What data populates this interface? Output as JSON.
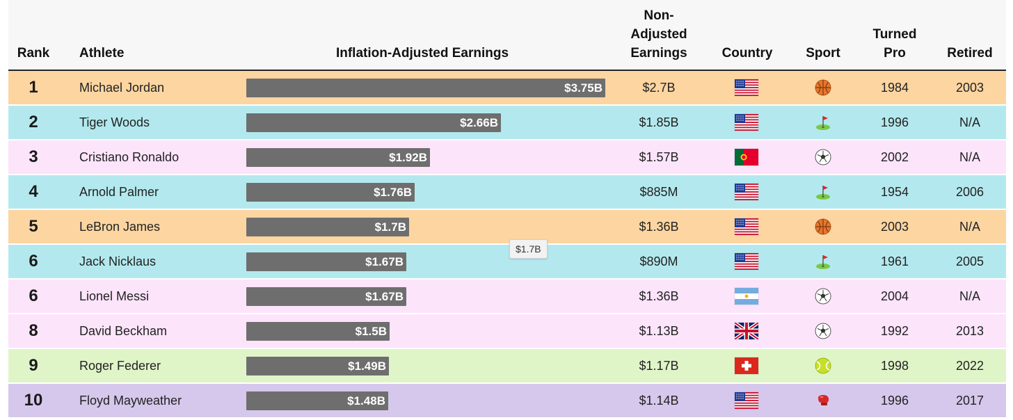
{
  "chart_data": {
    "type": "table",
    "columns": [
      "Rank",
      "Athlete",
      "Inflation-Adjusted Earnings",
      "Non-Adjusted Earnings",
      "Country",
      "Sport",
      "Turned Pro",
      "Retired"
    ],
    "header_lines": {
      "rank": [
        "Rank"
      ],
      "athlete": [
        "Athlete"
      ],
      "bar": [
        "Inflation-Adjusted Earnings"
      ],
      "non": [
        "Non-",
        "Adjusted",
        "Earnings"
      ],
      "country": [
        "Country"
      ],
      "sport": [
        "Sport"
      ],
      "turned": [
        "Turned",
        "Pro"
      ],
      "retired": [
        "Retired"
      ]
    },
    "bar_max": 3.75,
    "bar_color": "#6e6e6e",
    "rows": [
      {
        "rank": "1",
        "athlete": "Michael Jordan",
        "value": 3.75,
        "label": "$3.75B",
        "non_adjusted": "$2.7B",
        "country": "usa",
        "sport": "basketball",
        "turned_pro": "1984",
        "retired": "2003",
        "bg": "#fcd5a1"
      },
      {
        "rank": "2",
        "athlete": "Tiger Woods",
        "value": 2.66,
        "label": "$2.66B",
        "non_adjusted": "$1.85B",
        "country": "usa",
        "sport": "golf",
        "turned_pro": "1996",
        "retired": "N/A",
        "bg": "#b3e9ee"
      },
      {
        "rank": "3",
        "athlete": "Cristiano Ronaldo",
        "value": 1.92,
        "label": "$1.92B",
        "non_adjusted": "$1.57B",
        "country": "portugal",
        "sport": "soccer",
        "turned_pro": "2002",
        "retired": "N/A",
        "bg": "#fce4fb"
      },
      {
        "rank": "4",
        "athlete": "Arnold Palmer",
        "value": 1.76,
        "label": "$1.76B",
        "non_adjusted": "$885M",
        "country": "usa",
        "sport": "golf",
        "turned_pro": "1954",
        "retired": "2006",
        "bg": "#b3e9ee"
      },
      {
        "rank": "5",
        "athlete": "LeBron James",
        "value": 1.7,
        "label": "$1.7B",
        "non_adjusted": "$1.36B",
        "country": "usa",
        "sport": "basketball",
        "turned_pro": "2003",
        "retired": "N/A",
        "bg": "#fcd5a1"
      },
      {
        "rank": "6",
        "athlete": "Jack Nicklaus",
        "value": 1.67,
        "label": "$1.67B",
        "non_adjusted": "$890M",
        "country": "usa",
        "sport": "golf",
        "turned_pro": "1961",
        "retired": "2005",
        "bg": "#b3e9ee"
      },
      {
        "rank": "6",
        "athlete": "Lionel Messi",
        "value": 1.67,
        "label": "$1.67B",
        "non_adjusted": "$1.36B",
        "country": "argentina",
        "sport": "soccer",
        "turned_pro": "2004",
        "retired": "N/A",
        "bg": "#fce4fb"
      },
      {
        "rank": "8",
        "athlete": "David Beckham",
        "value": 1.5,
        "label": "$1.5B",
        "non_adjusted": "$1.13B",
        "country": "uk",
        "sport": "soccer",
        "turned_pro": "1992",
        "retired": "2013",
        "bg": "#fce4fb"
      },
      {
        "rank": "9",
        "athlete": "Roger Federer",
        "value": 1.49,
        "label": "$1.49B",
        "non_adjusted": "$1.17B",
        "country": "switzerland",
        "sport": "tennis",
        "turned_pro": "1998",
        "retired": "2022",
        "bg": "#dff5c8"
      },
      {
        "rank": "10",
        "athlete": "Floyd Mayweather",
        "value": 1.48,
        "label": "$1.48B",
        "non_adjusted": "$1.14B",
        "country": "usa",
        "sport": "boxing",
        "turned_pro": "1996",
        "retired": "2017",
        "bg": "#d6c8ec"
      }
    ],
    "tooltip": "$1.7B"
  }
}
